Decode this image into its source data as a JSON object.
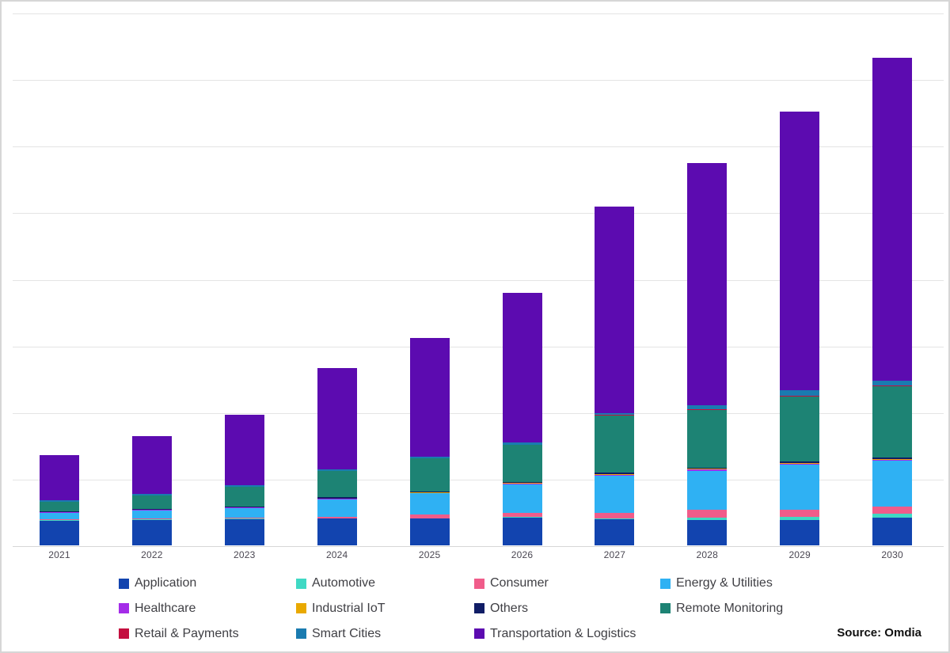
{
  "chart_data": {
    "type": "bar",
    "stacked": true,
    "title": "",
    "xlabel": "",
    "ylabel": "",
    "categories": [
      "2021",
      "2022",
      "2023",
      "2024",
      "2025",
      "2026",
      "2027",
      "2028",
      "2029",
      "2030"
    ],
    "series": [
      {
        "name": "Application",
        "color": "#1244af",
        "values": [
          0.37,
          0.38,
          0.39,
          0.4,
          0.4,
          0.42,
          0.39,
          0.38,
          0.38,
          0.42
        ]
      },
      {
        "name": "Automotive",
        "color": "#3fd9c4",
        "values": [
          0.01,
          0.01,
          0.01,
          0.01,
          0.01,
          0.01,
          0.02,
          0.04,
          0.05,
          0.06
        ]
      },
      {
        "name": "Consumer",
        "color": "#f05c8a",
        "values": [
          0.01,
          0.02,
          0.02,
          0.02,
          0.05,
          0.06,
          0.08,
          0.12,
          0.11,
          0.1
        ]
      },
      {
        "name": "Energy & Utilities",
        "color": "#2fb1f3",
        "values": [
          0.1,
          0.11,
          0.14,
          0.26,
          0.32,
          0.43,
          0.56,
          0.58,
          0.67,
          0.69
        ]
      },
      {
        "name": "Healthcare",
        "color": "#a42ce8",
        "values": [
          0.01,
          0.01,
          0.01,
          0.01,
          0.01,
          0.01,
          0.01,
          0.02,
          0.02,
          0.02
        ]
      },
      {
        "name": "Industrial IoT",
        "color": "#e9a900",
        "values": [
          0.005,
          0.005,
          0.005,
          0.005,
          0.005,
          0.005,
          0.01,
          0.01,
          0.01,
          0.01
        ]
      },
      {
        "name": "Others",
        "color": "#101d66",
        "values": [
          0.01,
          0.01,
          0.01,
          0.02,
          0.02,
          0.02,
          0.02,
          0.02,
          0.02,
          0.015
        ]
      },
      {
        "name": "Remote Monitoring",
        "color": "#1d8374",
        "values": [
          0.14,
          0.2,
          0.29,
          0.39,
          0.49,
          0.55,
          0.86,
          0.86,
          0.98,
          1.08
        ]
      },
      {
        "name": "Retail & Payments",
        "color": "#c40e3f",
        "values": [
          0.005,
          0.005,
          0.005,
          0.005,
          0.005,
          0.005,
          0.01,
          0.01,
          0.01,
          0.01
        ]
      },
      {
        "name": "Smart Cities",
        "color": "#1a7bb0",
        "values": [
          0.02,
          0.02,
          0.02,
          0.02,
          0.02,
          0.04,
          0.03,
          0.06,
          0.08,
          0.07
        ]
      },
      {
        "name": "Transportation & Logistics",
        "color": "#5c0bb0",
        "values": [
          0.68,
          0.87,
          1.06,
          1.53,
          1.79,
          2.24,
          3.1,
          3.64,
          4.19,
          4.85
        ]
      }
    ],
    "y_axis": {
      "labels_visible": false,
      "ylim": [
        0,
        8
      ],
      "gridline_interval": 1,
      "grid": true
    },
    "legend_position": "bottom",
    "legend_rows": [
      [
        "Application",
        "Automotive",
        "Consumer",
        "Energy & Utilities"
      ],
      [
        "Healthcare",
        "Industrial IoT",
        "Others",
        "Remote Monitoring"
      ],
      [
        "Retail & Payments",
        "Smart Cities",
        "Transportation & Logistics"
      ]
    ],
    "source_note": "Source: Omdia"
  }
}
